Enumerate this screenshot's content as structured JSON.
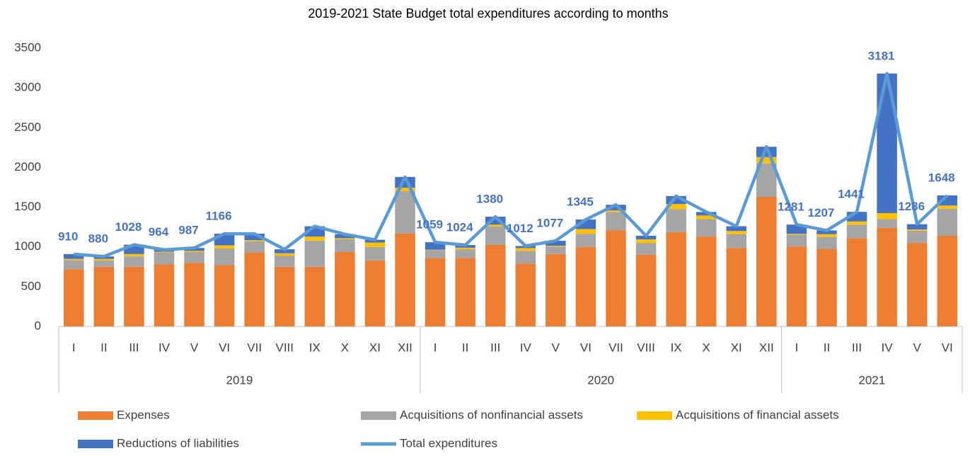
{
  "chart_data": {
    "type": "stacked-bar-line",
    "title": "2019-2021 State Budget total expenditures according to months",
    "categories": [
      "I",
      "II",
      "III",
      "IV",
      "V",
      "VI",
      "VII",
      "VIII",
      "IX",
      "X",
      "XI",
      "XII",
      "I",
      "II",
      "III",
      "IV",
      "V",
      "VI",
      "VII",
      "VIII",
      "IX",
      "X",
      "XI",
      "XII",
      "I",
      "II",
      "III",
      "IV",
      "V",
      "VI"
    ],
    "category_groups": [
      {
        "label": "2019",
        "size": 12
      },
      {
        "label": "2020",
        "size": 12
      },
      {
        "label": "2021",
        "size": 6
      }
    ],
    "series": [
      {
        "name": "Expenses",
        "type": "bar",
        "color": "#ED7D31",
        "values": [
          720,
          750,
          750,
          780,
          800,
          770,
          930,
          750,
          750,
          935,
          830,
          1170,
          860,
          860,
          1025,
          790,
          910,
          1000,
          1210,
          900,
          1185,
          1130,
          985,
          1630,
          1005,
          975,
          1110,
          1240,
          1050,
          1140
        ]
      },
      {
        "name": "Acquisitions of nonfinancial assets",
        "type": "bar",
        "color": "#A5A5A5",
        "values": [
          115,
          80,
          130,
          150,
          135,
          210,
          140,
          140,
          330,
          160,
          170,
          530,
          100,
          110,
          230,
          160,
          95,
          165,
          230,
          150,
          290,
          220,
          175,
          420,
          150,
          150,
          170,
          110,
          155,
          340
        ]
      },
      {
        "name": "Acquisitions of financial assets",
        "type": "bar",
        "color": "#FFC000",
        "values": [
          15,
          20,
          30,
          10,
          15,
          40,
          15,
          30,
          50,
          15,
          55,
          45,
          5,
          20,
          25,
          35,
          10,
          60,
          20,
          45,
          65,
          45,
          40,
          80,
          10,
          35,
          40,
          75,
          15,
          40
        ]
      },
      {
        "name": "Reductions of liabilities",
        "type": "bar",
        "color": "#4472C4",
        "values": [
          60,
          30,
          118,
          24,
          37,
          146,
          81,
          50,
          130,
          50,
          35,
          135,
          94,
          34,
          100,
          27,
          62,
          120,
          70,
          45,
          100,
          45,
          60,
          130,
          116,
          47,
          121,
          1756,
          66,
          128
        ]
      },
      {
        "name": "Total expenditures",
        "type": "line",
        "color": "#5B9BD5",
        "values": [
          910,
          880,
          1028,
          964,
          987,
          1166,
          1166,
          970,
          1260,
          1160,
          1090,
          1880,
          1059,
          1024,
          1380,
          1012,
          1077,
          1345,
          1530,
          1140,
          1640,
          1440,
          1260,
          2260,
          1281,
          1207,
          1441,
          3181,
          1286,
          1648
        ],
        "value_labels": [
          "910",
          "880",
          "1028",
          "964",
          "987",
          "1166",
          null,
          null,
          null,
          null,
          null,
          null,
          "1059",
          "1024",
          "1380",
          "1012",
          "1077",
          "1345",
          null,
          null,
          null,
          null,
          null,
          null,
          "1281",
          "1207",
          "1441",
          "3181",
          "1286",
          "1648"
        ],
        "label_color": "#4472C4"
      }
    ],
    "ylim": [
      0,
      3500
    ],
    "yticks": [
      0,
      500,
      1000,
      1500,
      2000,
      2500,
      3000,
      3500
    ],
    "grid": false
  }
}
